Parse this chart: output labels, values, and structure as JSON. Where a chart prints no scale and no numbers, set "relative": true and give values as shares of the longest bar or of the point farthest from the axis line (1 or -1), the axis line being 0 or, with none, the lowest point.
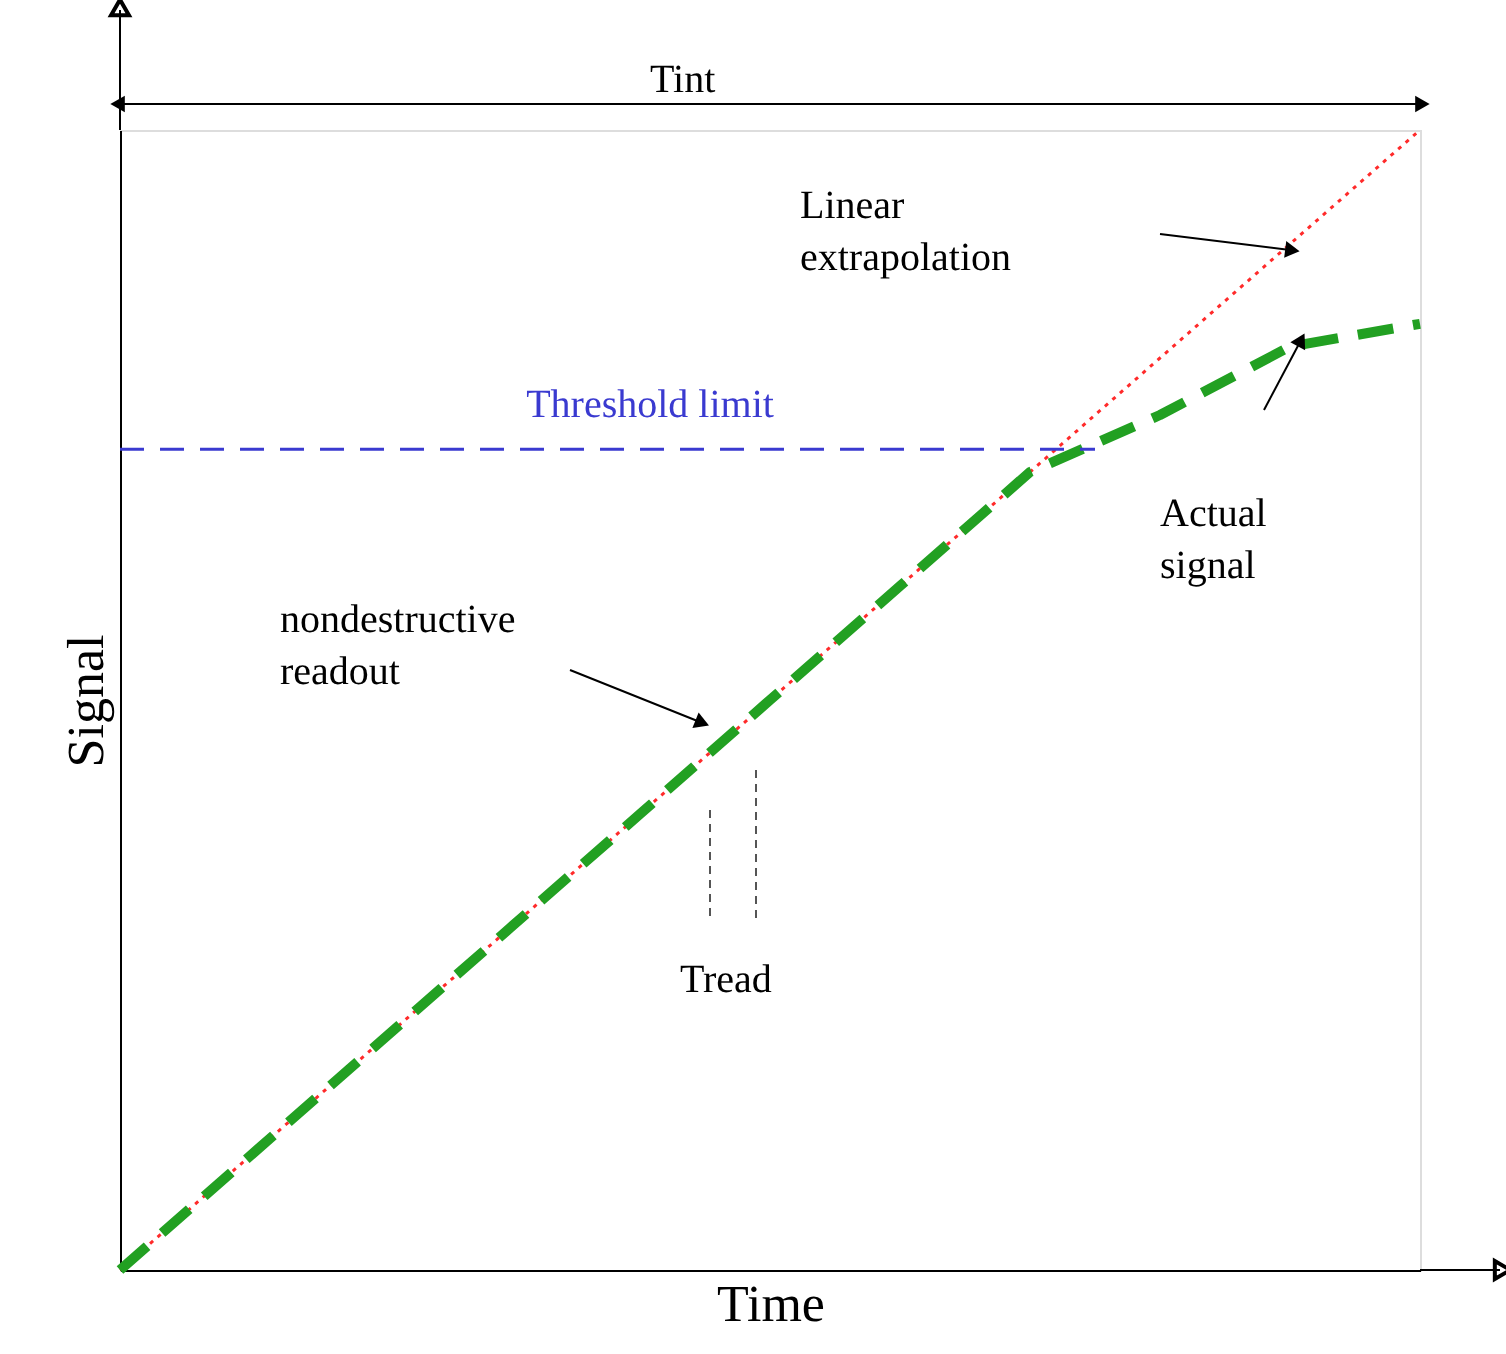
{
  "chart_data": {
    "type": "line",
    "relative": true,
    "xlabel": "Time",
    "ylabel": "Signal",
    "categories": [
      null,
      null,
      null,
      null,
      null,
      null,
      null,
      null,
      null,
      null,
      null
    ],
    "series": [
      {
        "color": "#ff2a2a",
        "line_style": "dotted",
        "values": [
          0,
          0.1,
          0.2,
          0.3,
          0.4,
          0.5,
          0.6,
          0.7,
          0.8,
          0.9,
          1.0
        ]
      },
      {
        "color": "#22a022",
        "line_style": "dashed",
        "values": [
          0,
          0.1,
          0.2,
          0.3,
          0.4,
          0.5,
          0.6,
          0.7,
          0.75,
          0.81,
          0.83
        ]
      }
    ],
    "ref_lines": [
      {
        "axis": "y",
        "value": 0.72,
        "label": "Threshold limit",
        "color": "#3a3ad0",
        "line_style": "dashed"
      }
    ],
    "annotations": [
      "Tint",
      "Linear extrapolation",
      "Actual signal",
      "nondestructive readout",
      "Tread"
    ],
    "grid": false
  }
}
